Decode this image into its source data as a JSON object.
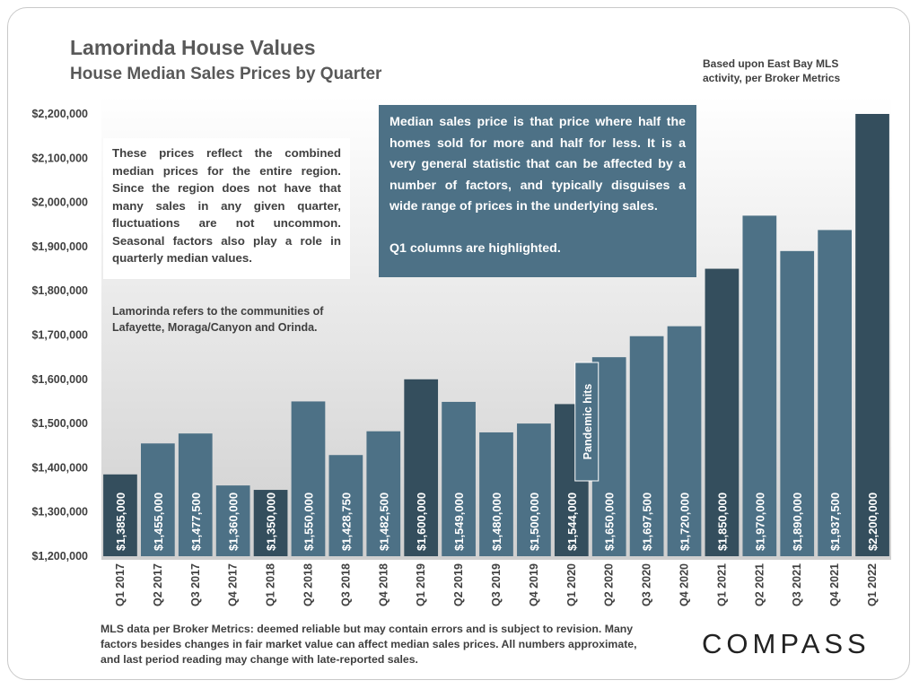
{
  "title": "Lamorinda House Values",
  "subtitle": "House Median Sales Prices by Quarter",
  "source_note": "Based upon East Bay MLS activity, per Broker Metrics",
  "notes": {
    "white_box": "These prices reflect the combined median prices for the entire region. Since the region does not have that many sales in any given quarter, fluctuations are not uncommon. Seasonal factors also play a role in quarterly median values.",
    "lamorinda": "Lamorinda refers to the communities of Lafayette, Moraga/Canyon and Orinda.",
    "blue_box_definition": "Median sales price is that price where half the homes sold for more and half for less. It is a very general statistic that can be affected by a number of factors, and typically disguises a wide range of prices in the underlying sales.",
    "blue_box_highlight": "Q1 columns are highlighted."
  },
  "footer": "MLS data per Broker Metrics:  deemed reliable but may contain errors and is subject to revision. Many factors besides changes in fair market value can affect median sales prices. All numbers approximate, and last period reading may change with late-reported sales.",
  "logo_text": "COMPASS",
  "colors": {
    "q1_bar": "#344e5d",
    "bar": "#4d7186",
    "callout": "#4d7186",
    "plot_top": "#ffffff",
    "plot_bottom": "#cfcfcf"
  },
  "chart_data": {
    "type": "bar",
    "title": "House Median Sales Prices by Quarter",
    "xlabel": "",
    "ylabel": "",
    "ylim": [
      1200000,
      2200000
    ],
    "yticks": [
      1200000,
      1300000,
      1400000,
      1500000,
      1600000,
      1700000,
      1800000,
      1900000,
      2000000,
      2100000,
      2200000
    ],
    "ytick_labels": [
      "$1,200,000",
      "$1,300,000",
      "$1,400,000",
      "$1,500,000",
      "$1,600,000",
      "$1,700,000",
      "$1,800,000",
      "$1,900,000",
      "$2,000,000",
      "$2,100,000",
      "$2,200,000"
    ],
    "categories": [
      "Q1 2017",
      "Q2 2017",
      "Q3 2017",
      "Q4 2017",
      "Q1 2018",
      "Q2 2018",
      "Q3 2018",
      "Q4 2018",
      "Q1 2019",
      "Q2 2019",
      "Q3 2019",
      "Q4 2019",
      "Q1 2020",
      "Q2 2020",
      "Q3 2020",
      "Q4 2020",
      "Q1 2021",
      "Q2 2021",
      "Q3 2021",
      "Q4 2021",
      "Q1 2022"
    ],
    "values": [
      1385000,
      1455000,
      1477500,
      1360000,
      1350000,
      1550000,
      1428750,
      1482500,
      1600000,
      1549000,
      1480000,
      1500000,
      1544000,
      1650000,
      1697500,
      1720000,
      1850000,
      1970000,
      1890000,
      1937500,
      2200000
    ],
    "value_labels": [
      "$1,385,000",
      "$1,455,000",
      "$1,477,500",
      "$1,360,000",
      "$1,350,000",
      "$1,550,000",
      "$1,428,750",
      "$1,482,500",
      "$1,600,000",
      "$1,549,000",
      "$1,480,000",
      "$1,500,000",
      "$1,544,000",
      "$1,650,000",
      "$1,697,500",
      "$1,720,000",
      "$1,850,000",
      "$1,970,000",
      "$1,890,000",
      "$1,937,500",
      "$2,200,000"
    ],
    "highlighted_categories": [
      "Q1 2017",
      "Q1 2018",
      "Q1 2019",
      "Q1 2020",
      "Q1 2021",
      "Q1 2022"
    ],
    "annotation": {
      "text": "Pandemic hits",
      "between": [
        "Q1 2020",
        "Q2 2020"
      ]
    },
    "grid": false,
    "legend": "none"
  }
}
